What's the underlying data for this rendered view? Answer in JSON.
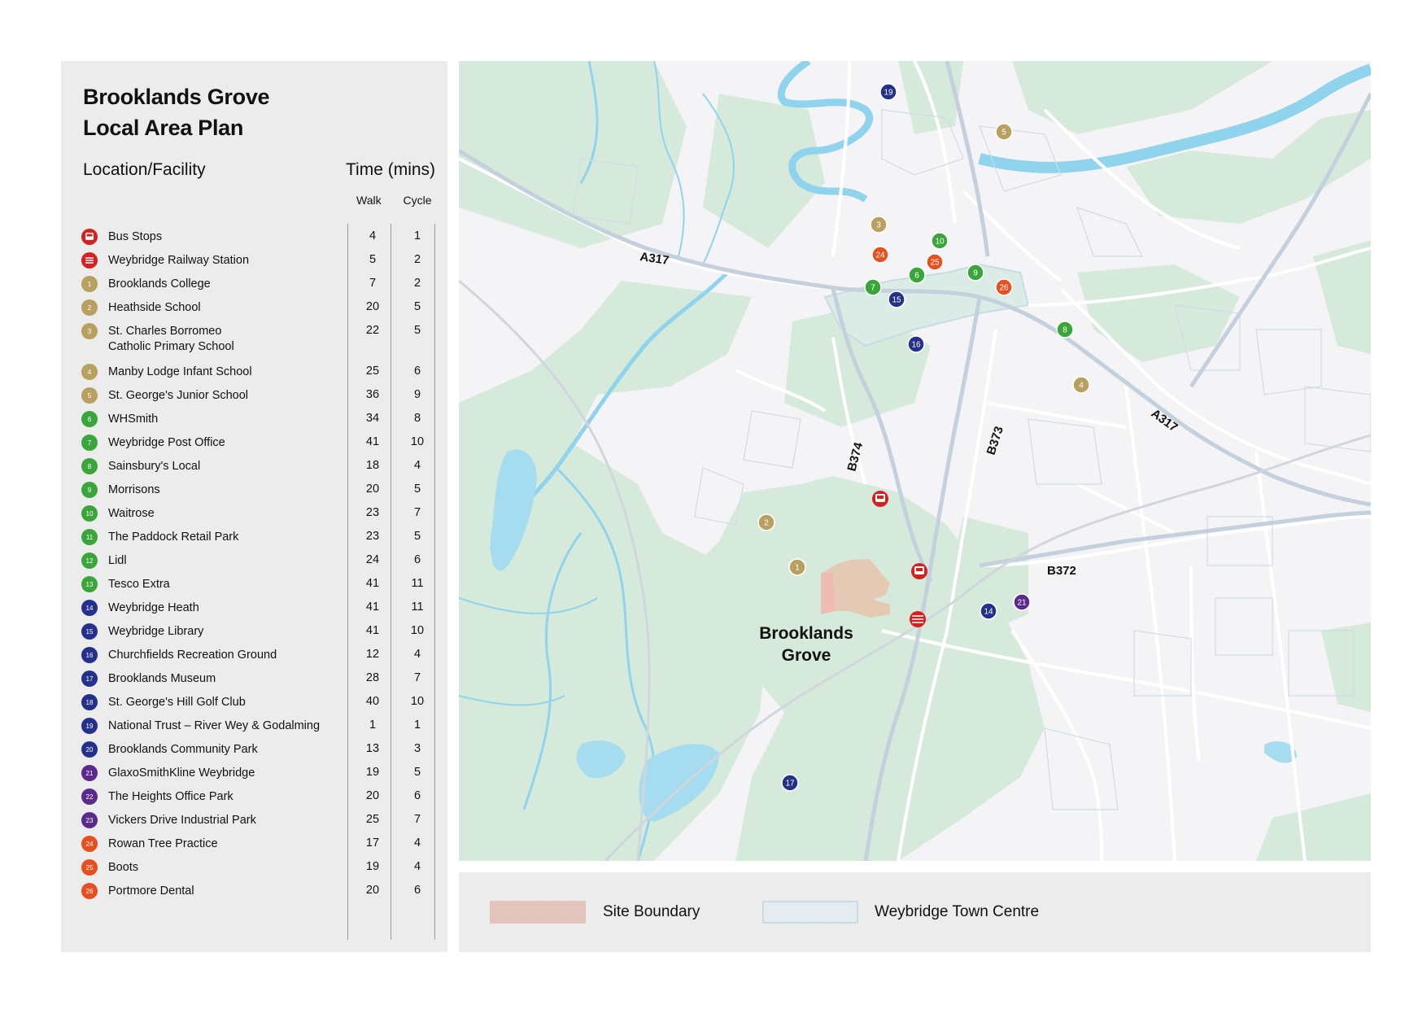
{
  "title_line1": "Brooklands Grove",
  "title_line2": "Local Area Plan",
  "header": {
    "location": "Location/Facility",
    "time": "Time (mins)",
    "walk": "Walk",
    "cycle": "Cycle"
  },
  "colors": {
    "bus": "#d42020",
    "rail": "#d42020",
    "education": "#b8a060",
    "retail": "#3aa53a",
    "leisure": "#24318a",
    "business": "#5b2a8c",
    "health": "#e65020"
  },
  "facilities": [
    {
      "badge": "",
      "icon": "bus-icon",
      "cat": "bus",
      "name": "Bus Stops",
      "walk": "4",
      "cycle": "1"
    },
    {
      "badge": "",
      "icon": "rail-icon",
      "cat": "rail",
      "name": "Weybridge Railway Station",
      "walk": "5",
      "cycle": "2"
    },
    {
      "badge": "1",
      "cat": "education",
      "name": "Brooklands College",
      "walk": "7",
      "cycle": "2"
    },
    {
      "badge": "2",
      "cat": "education",
      "name": "Heathside School",
      "walk": "20",
      "cycle": "5"
    },
    {
      "badge": "3",
      "cat": "education",
      "name": "St. Charles Borromeo",
      "name2": "Catholic Primary School",
      "walk": "22",
      "cycle": "5"
    },
    {
      "badge": "4",
      "cat": "education",
      "name": "Manby Lodge Infant School",
      "walk": "25",
      "cycle": "6"
    },
    {
      "badge": "5",
      "cat": "education",
      "name": "St. George's Junior School",
      "walk": "36",
      "cycle": "9"
    },
    {
      "badge": "6",
      "cat": "retail",
      "name": "WHSmith",
      "walk": "34",
      "cycle": "8"
    },
    {
      "badge": "7",
      "cat": "retail",
      "name": "Weybridge Post Office",
      "walk": "41",
      "cycle": "10"
    },
    {
      "badge": "8",
      "cat": "retail",
      "name": "Sainsbury's Local",
      "walk": "18",
      "cycle": "4"
    },
    {
      "badge": "9",
      "cat": "retail",
      "name": "Morrisons",
      "walk": "20",
      "cycle": "5"
    },
    {
      "badge": "10",
      "cat": "retail",
      "name": "Waitrose",
      "walk": "23",
      "cycle": "7"
    },
    {
      "badge": "11",
      "cat": "retail",
      "name": "The Paddock Retail Park",
      "walk": "23",
      "cycle": "5"
    },
    {
      "badge": "12",
      "cat": "retail",
      "name": "Lidl",
      "walk": "24",
      "cycle": "6"
    },
    {
      "badge": "13",
      "cat": "retail",
      "name": "Tesco Extra",
      "walk": "41",
      "cycle": "11"
    },
    {
      "badge": "14",
      "cat": "leisure",
      "name": "Weybridge Heath",
      "walk": "41",
      "cycle": "11"
    },
    {
      "badge": "15",
      "cat": "leisure",
      "name": "Weybridge Library",
      "walk": "41",
      "cycle": "10"
    },
    {
      "badge": "16",
      "cat": "leisure",
      "name": "Churchfields Recreation Ground",
      "walk": "12",
      "cycle": "4"
    },
    {
      "badge": "17",
      "cat": "leisure",
      "name": "Brooklands Museum",
      "walk": "28",
      "cycle": "7"
    },
    {
      "badge": "18",
      "cat": "leisure",
      "name": "St. George's Hill Golf Club",
      "walk": "40",
      "cycle": "10"
    },
    {
      "badge": "19",
      "cat": "leisure",
      "name": "National Trust – River Wey & Godalming",
      "walk": "1",
      "cycle": "1"
    },
    {
      "badge": "20",
      "cat": "leisure",
      "name": "Brooklands Community Park",
      "walk": "13",
      "cycle": "3"
    },
    {
      "badge": "21",
      "cat": "business",
      "name": "GlaxoSmithKline Weybridge",
      "walk": "19",
      "cycle": "5"
    },
    {
      "badge": "22",
      "cat": "business",
      "name": "The Heights Office Park",
      "walk": "20",
      "cycle": "6"
    },
    {
      "badge": "23",
      "cat": "business",
      "name": "Vickers Drive Industrial Park",
      "walk": "25",
      "cycle": "7"
    },
    {
      "badge": "24",
      "cat": "health",
      "name": "Rowan Tree Practice",
      "walk": "17",
      "cycle": "4"
    },
    {
      "badge": "25",
      "cat": "health",
      "name": "Boots",
      "walk": "19",
      "cycle": "4"
    },
    {
      "badge": "26",
      "cat": "health",
      "name": "Portmore Dental",
      "walk": "20",
      "cycle": "6"
    }
  ],
  "map": {
    "site_label_line1": "Brooklands",
    "site_label_line2": "Grove",
    "road_labels": {
      "a317_west": "A317",
      "a317_east": "A317",
      "b374": "B374",
      "b373": "B373",
      "b372": "B372"
    },
    "markers": [
      {
        "label": "19",
        "cat": "leisure"
      },
      {
        "label": "5",
        "cat": "education"
      },
      {
        "label": "3",
        "cat": "education"
      },
      {
        "label": "24",
        "cat": "health"
      },
      {
        "label": "10",
        "cat": "retail"
      },
      {
        "label": "25",
        "cat": "health"
      },
      {
        "label": "6",
        "cat": "retail"
      },
      {
        "label": "9",
        "cat": "retail"
      },
      {
        "label": "7",
        "cat": "retail"
      },
      {
        "label": "15",
        "cat": "leisure"
      },
      {
        "label": "26",
        "cat": "health"
      },
      {
        "label": "8",
        "cat": "retail"
      },
      {
        "label": "16",
        "cat": "leisure"
      },
      {
        "label": "4",
        "cat": "education"
      },
      {
        "label": "2",
        "cat": "education"
      },
      {
        "label": "1",
        "cat": "education"
      },
      {
        "label": "14",
        "cat": "leisure"
      },
      {
        "label": "21",
        "cat": "business"
      },
      {
        "label": "17",
        "cat": "leisure"
      }
    ]
  },
  "legend": {
    "site_boundary": "Site Boundary",
    "town_centre": "Weybridge Town Centre",
    "site_color": "#e2c4bc",
    "town_color": "#e4ecef"
  }
}
